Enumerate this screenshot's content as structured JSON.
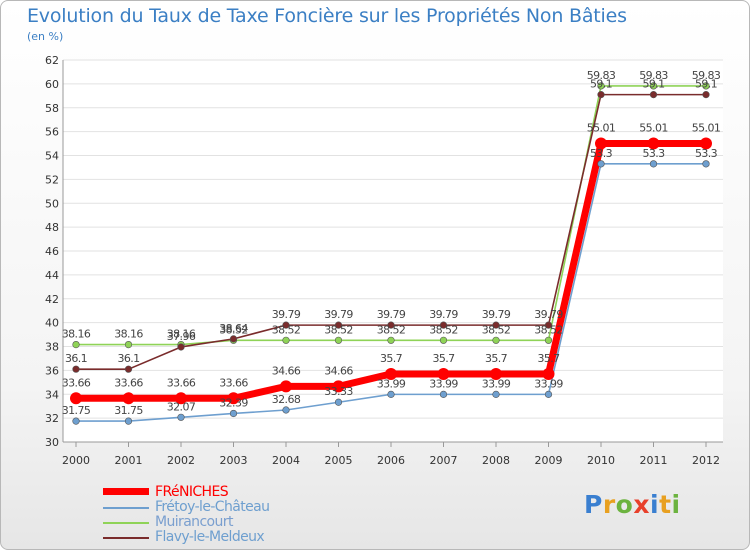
{
  "title": "Evolution du Taux de Taxe Foncière sur les Propriétés Non Bâties",
  "unit_label": "(en %)",
  "logo": {
    "letters": [
      "P",
      "r",
      "o",
      "x",
      "i",
      "t",
      "i"
    ],
    "colors": [
      "#3a7fd0",
      "#e8a020",
      "#6cb33f",
      "#e8402b",
      "#3a7fd0",
      "#e8a020",
      "#6cb33f"
    ]
  },
  "chart_data": {
    "type": "line",
    "title": "Evolution du Taux de Taxe Foncière sur les Propriétés Non Bâties",
    "ylabel": "(en %)",
    "xlabel": "",
    "ylim": [
      30,
      62
    ],
    "yticks": [
      "30",
      "32",
      "34",
      "36",
      "38",
      "40",
      "42",
      "44",
      "46",
      "48",
      "50",
      "52",
      "54",
      "56",
      "58",
      "60",
      "62"
    ],
    "categories": [
      "2000",
      "2001",
      "2002",
      "2003",
      "2004",
      "2005",
      "2006",
      "2007",
      "2008",
      "2009",
      "2010",
      "2011",
      "2012"
    ],
    "grid": "horizontal",
    "legend": "bottom-left",
    "series": [
      {
        "name": "FRéNICHES",
        "color": "#ff0000",
        "values": [
          33.66,
          33.66,
          33.66,
          33.66,
          34.66,
          34.66,
          35.7,
          35.7,
          35.7,
          35.7,
          55.01,
          55.01,
          55.01
        ],
        "labels": [
          "33.66",
          "33.66",
          "33.66",
          "33.66",
          "34.66",
          "34.66",
          "35.7",
          "35.7",
          "35.7",
          "35.7",
          "55.01",
          "55.01",
          "55.01"
        ]
      },
      {
        "name": "Frétoy-le-Château",
        "color": "#6e9fcf",
        "values": [
          31.75,
          31.75,
          32.07,
          32.39,
          32.68,
          33.33,
          33.99,
          33.99,
          33.99,
          33.99,
          53.3,
          53.3,
          53.3
        ],
        "labels": [
          "31.75",
          "31.75",
          "32.07",
          "32.39",
          "32.68",
          "33.33",
          "33.99",
          "33.99",
          "33.99",
          "33.99",
          "53.3",
          "53.3",
          "53.3"
        ]
      },
      {
        "name": "Muirancourt",
        "color": "#8fd357",
        "values": [
          38.16,
          38.16,
          38.16,
          38.52,
          38.52,
          38.52,
          38.52,
          38.52,
          38.52,
          38.52,
          59.83,
          59.83,
          59.83
        ],
        "labels": [
          "38.16",
          "38.16",
          "38.16",
          "38.52",
          "38.52",
          "38.52",
          "38.52",
          "38.52",
          "38.52",
          "38.52",
          "59.83",
          "59.83",
          "59.83"
        ]
      },
      {
        "name": "Flavy-le-Meldeux",
        "color": "#7a2c2c",
        "values": [
          36.1,
          36.1,
          37.96,
          38.64,
          39.79,
          39.79,
          39.79,
          39.79,
          39.79,
          39.79,
          59.1,
          59.1,
          59.1
        ],
        "labels": [
          "36.1",
          "36.1",
          "37.96",
          "38.64",
          "39.79",
          "39.79",
          "39.79",
          "39.79",
          "39.79",
          "39.79",
          "59.1",
          "59.1",
          "59.1"
        ]
      }
    ]
  }
}
